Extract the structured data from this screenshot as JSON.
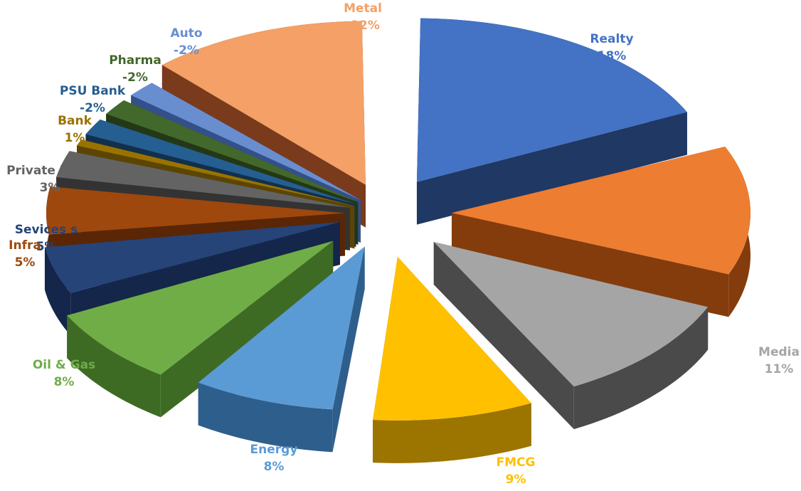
{
  "chart_data": {
    "type": "pie",
    "title": "",
    "legend": "none",
    "slices": [
      {
        "name": "Realty",
        "value": 18,
        "label": "18%",
        "color": "#4472C4",
        "side": "#1F3864"
      },
      {
        "name": "",
        "value": 13,
        "label": "",
        "color": "#ED7D31",
        "side": "#843C0C"
      },
      {
        "name": "Media",
        "value": 11,
        "label": "11%",
        "color": "#A5A5A5",
        "side": "#4A4A4A"
      },
      {
        "name": "FMCG",
        "value": 9,
        "label": "9%",
        "color": "#FFC000",
        "side": "#9C7400"
      },
      {
        "name": "Energy",
        "value": 8,
        "label": "8%",
        "color": "#5B9BD5",
        "side": "#2E5E8C"
      },
      {
        "name": "Oil & Gas",
        "value": 8,
        "label": "8%",
        "color": "#70AD47",
        "side": "#3E6B24"
      },
      {
        "name": "Sevices s",
        "value": 5,
        "label": "5%",
        "color": "#264478",
        "side": "#14264A"
      },
      {
        "name": "Infra",
        "value": 5,
        "label": "5%",
        "color": "#9E480E",
        "side": "#5A2606"
      },
      {
        "name": "Private bank",
        "value": 3,
        "label": "3%",
        "color": "#636363",
        "side": "#333333"
      },
      {
        "name": "Bank",
        "value": 1,
        "label": "1%",
        "color": "#997300",
        "side": "#5C4500"
      },
      {
        "name": "PSU Bank",
        "value": -2,
        "label": "-2%",
        "color": "#255E91",
        "side": "#12304C"
      },
      {
        "name": "Pharma",
        "value": -2,
        "label": "-2%",
        "color": "#43682B",
        "side": "#233816"
      },
      {
        "name": "Auto",
        "value": -2,
        "label": "-2%",
        "color": "#698ED0",
        "side": "#34508A"
      },
      {
        "name": "Metal",
        "value": -12,
        "label": "-12%",
        "color": "#F4A066",
        "side": "#7A3A1C"
      }
    ]
  }
}
